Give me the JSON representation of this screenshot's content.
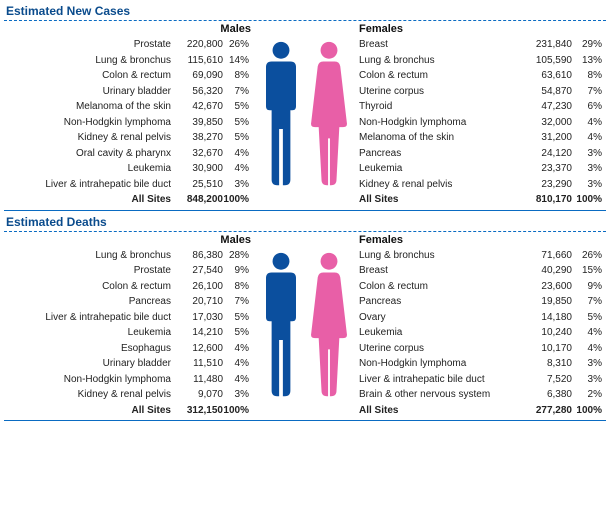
{
  "type": "infographic",
  "colors": {
    "male": "#0b4f9e",
    "female": "#e85fa7",
    "rule": "#0a6bc2",
    "title": "#0a4b8c",
    "text": "#222222",
    "bg": "#ffffff"
  },
  "typography": {
    "title_size": 12,
    "header_size": 11,
    "row_size": 10,
    "family": "Arial"
  },
  "labels": {
    "males": "Males",
    "females": "Females",
    "all_sites": "All Sites"
  },
  "sections": [
    {
      "title": "Estimated New Cases",
      "males": {
        "rows": [
          {
            "site": "Prostate",
            "n": "220,800",
            "pct": "26%"
          },
          {
            "site": "Lung & bronchus",
            "n": "115,610",
            "pct": "14%"
          },
          {
            "site": "Colon & rectum",
            "n": "69,090",
            "pct": "8%"
          },
          {
            "site": "Urinary bladder",
            "n": "56,320",
            "pct": "7%"
          },
          {
            "site": "Melanoma of the skin",
            "n": "42,670",
            "pct": "5%"
          },
          {
            "site": "Non-Hodgkin lymphoma",
            "n": "39,850",
            "pct": "5%"
          },
          {
            "site": "Kidney & renal pelvis",
            "n": "38,270",
            "pct": "5%"
          },
          {
            "site": "Oral cavity & pharynx",
            "n": "32,670",
            "pct": "4%"
          },
          {
            "site": "Leukemia",
            "n": "30,900",
            "pct": "4%"
          },
          {
            "site": "Liver & intrahepatic bile duct",
            "n": "25,510",
            "pct": "3%"
          }
        ],
        "total": {
          "n": "848,200",
          "pct": "100%"
        }
      },
      "females": {
        "rows": [
          {
            "site": "Breast",
            "n": "231,840",
            "pct": "29%"
          },
          {
            "site": "Lung & bronchus",
            "n": "105,590",
            "pct": "13%"
          },
          {
            "site": "Colon & rectum",
            "n": "63,610",
            "pct": "8%"
          },
          {
            "site": "Uterine corpus",
            "n": "54,870",
            "pct": "7%"
          },
          {
            "site": "Thyroid",
            "n": "47,230",
            "pct": "6%"
          },
          {
            "site": "Non-Hodgkin lymphoma",
            "n": "32,000",
            "pct": "4%"
          },
          {
            "site": "Melanoma of the skin",
            "n": "31,200",
            "pct": "4%"
          },
          {
            "site": "Pancreas",
            "n": "24,120",
            "pct": "3%"
          },
          {
            "site": "Leukemia",
            "n": "23,370",
            "pct": "3%"
          },
          {
            "site": "Kidney & renal pelvis",
            "n": "23,290",
            "pct": "3%"
          }
        ],
        "total": {
          "n": "810,170",
          "pct": "100%"
        }
      }
    },
    {
      "title": "Estimated Deaths",
      "males": {
        "rows": [
          {
            "site": "Lung & bronchus",
            "n": "86,380",
            "pct": "28%"
          },
          {
            "site": "Prostate",
            "n": "27,540",
            "pct": "9%"
          },
          {
            "site": "Colon & rectum",
            "n": "26,100",
            "pct": "8%"
          },
          {
            "site": "Pancreas",
            "n": "20,710",
            "pct": "7%"
          },
          {
            "site": "Liver & intrahepatic bile duct",
            "n": "17,030",
            "pct": "5%"
          },
          {
            "site": "Leukemia",
            "n": "14,210",
            "pct": "5%"
          },
          {
            "site": "Esophagus",
            "n": "12,600",
            "pct": "4%"
          },
          {
            "site": "Urinary bladder",
            "n": "11,510",
            "pct": "4%"
          },
          {
            "site": "Non-Hodgkin lymphoma",
            "n": "11,480",
            "pct": "4%"
          },
          {
            "site": "Kidney & renal pelvis",
            "n": "9,070",
            "pct": "3%"
          }
        ],
        "total": {
          "n": "312,150",
          "pct": "100%"
        }
      },
      "females": {
        "rows": [
          {
            "site": "Lung & bronchus",
            "n": "71,660",
            "pct": "26%"
          },
          {
            "site": "Breast",
            "n": "40,290",
            "pct": "15%"
          },
          {
            "site": "Colon & rectum",
            "n": "23,600",
            "pct": "9%"
          },
          {
            "site": "Pancreas",
            "n": "19,850",
            "pct": "7%"
          },
          {
            "site": "Ovary",
            "n": "14,180",
            "pct": "5%"
          },
          {
            "site": "Leukemia",
            "n": "10,240",
            "pct": "4%"
          },
          {
            "site": "Uterine corpus",
            "n": "10,170",
            "pct": "4%"
          },
          {
            "site": "Non-Hodgkin lymphoma",
            "n": "8,310",
            "pct": "3%"
          },
          {
            "site": "Liver & intrahepatic bile duct",
            "n": "7,520",
            "pct": "3%"
          },
          {
            "site": "Brain & other nervous system",
            "n": "6,380",
            "pct": "2%"
          }
        ],
        "total": {
          "n": "277,280",
          "pct": "100%"
        }
      }
    }
  ]
}
